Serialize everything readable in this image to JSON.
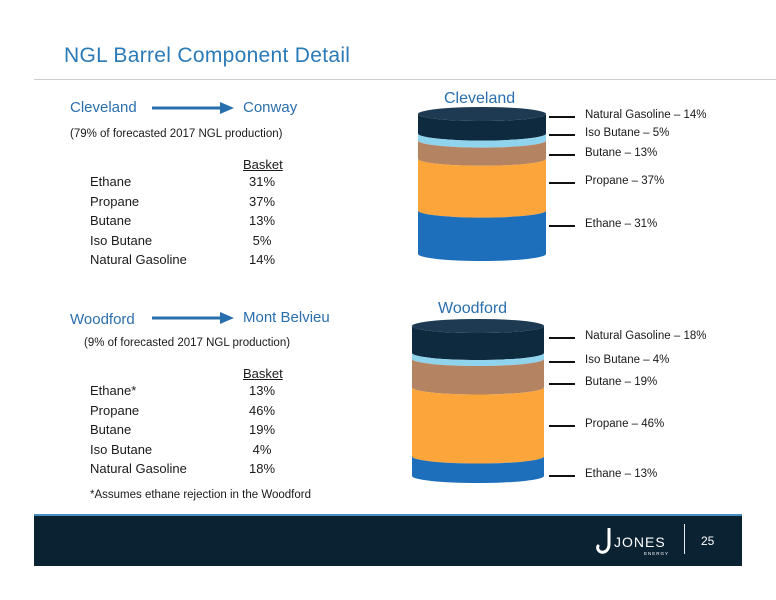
{
  "title": "NGL Barrel Component Detail",
  "cleveland_section": {
    "origin": "Cleveland",
    "destination": "Conway",
    "note": "(79% of forecasted 2017 NGL production)",
    "basket_header": "Basket",
    "rows": [
      {
        "name": "Ethane",
        "value": "31%"
      },
      {
        "name": "Propane",
        "value": "37%"
      },
      {
        "name": "Butane",
        "value": "13%"
      },
      {
        "name": "Iso Butane",
        "value": "5%"
      },
      {
        "name": "Natural Gasoline",
        "value": "14%"
      }
    ]
  },
  "woodford_section": {
    "origin": "Woodford",
    "destination": "Mont Belvieu",
    "note": "(9% of forecasted 2017 NGL production)",
    "basket_header": "Basket",
    "rows": [
      {
        "name": "Ethane*",
        "value": "13%"
      },
      {
        "name": "Propane",
        "value": "46%"
      },
      {
        "name": "Butane",
        "value": "19%"
      },
      {
        "name": "Iso Butane",
        "value": "4%"
      },
      {
        "name": "Natural Gasoline",
        "value": "18%"
      }
    ],
    "footnote": "*Assumes ethane rejection in the Woodford"
  },
  "cleveland_barrel": {
    "title": "Cleveland",
    "layers_top_to_bottom": [
      {
        "label": "Natural Gasoline – 14%",
        "percent": 14,
        "color": "#0e2a3f"
      },
      {
        "label": "Iso Butane – 5%",
        "percent": 5,
        "color": "#8fd3ec"
      },
      {
        "label": "Butane – 13%",
        "percent": 13,
        "color": "#b48462"
      },
      {
        "label": "Propane – 37%",
        "percent": 37,
        "color": "#fba53a"
      },
      {
        "label": "Ethane – 31%",
        "percent": 31,
        "color": "#1e6fbb"
      }
    ]
  },
  "woodford_barrel": {
    "title": "Woodford",
    "layers_top_to_bottom": [
      {
        "label": "Natural Gasoline – 18%",
        "percent": 18,
        "color": "#0e2a3f"
      },
      {
        "label": "Iso Butane – 4%",
        "percent": 4,
        "color": "#8fd3ec"
      },
      {
        "label": "Butane – 19%",
        "percent": 19,
        "color": "#b48462"
      },
      {
        "label": "Propane – 46%",
        "percent": 46,
        "color": "#fba53a"
      },
      {
        "label": "Ethane – 13%",
        "percent": 13,
        "color": "#1e6fbb"
      }
    ]
  },
  "footer": {
    "logo_initial": "J",
    "logo_text": "JONES",
    "logo_subtext": "ENERGY",
    "page_number": "25"
  }
}
